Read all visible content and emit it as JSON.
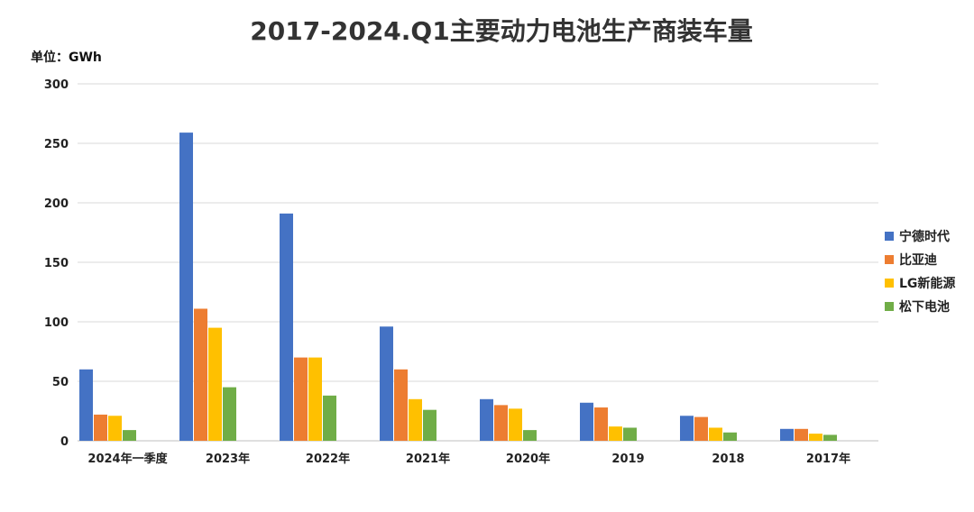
{
  "chart_data": {
    "type": "bar",
    "title": "2017-2024.Q1主要动力电池生产商装车量",
    "unit_label": "单位：GWh",
    "xlabel": "",
    "ylabel": "",
    "ylim": [
      0,
      300
    ],
    "yticks": [
      0,
      50,
      100,
      150,
      200,
      250,
      300
    ],
    "grid": true,
    "legend_position": "right",
    "categories": [
      "2024年一季度",
      "2023年",
      "2022年",
      "2021年",
      "2020年",
      "2019",
      "2018",
      "2017年"
    ],
    "series": [
      {
        "name": "宁德时代",
        "color": "#4472C4",
        "values": [
          60,
          259,
          191,
          96,
          35,
          32,
          21,
          10
        ]
      },
      {
        "name": "比亚迪",
        "color": "#ED7D31",
        "values": [
          22,
          111,
          70,
          60,
          30,
          28,
          20,
          10
        ]
      },
      {
        "name": "LG新能源",
        "color": "#FFC000",
        "values": [
          21,
          95,
          70,
          35,
          27,
          12,
          11,
          6
        ]
      },
      {
        "name": "松下电池",
        "color": "#70AD47",
        "values": [
          9,
          45,
          38,
          26,
          9,
          11,
          7,
          5
        ]
      }
    ]
  }
}
